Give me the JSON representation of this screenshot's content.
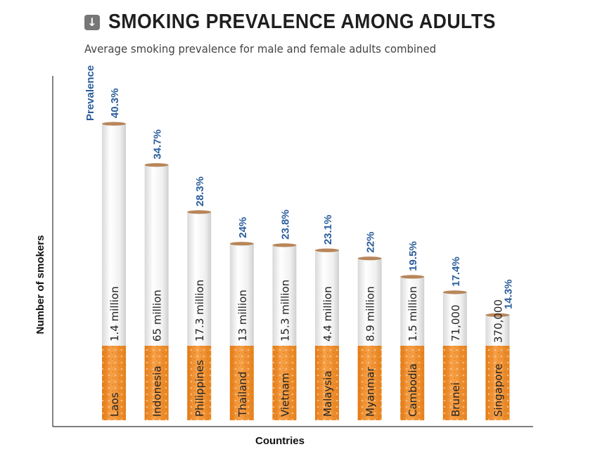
{
  "title": "SMOKING PREVALENCE AMONG ADULTS",
  "title_icon": "down-arrow-icon",
  "subtitle": "Average smoking prevalence for male and female adults combined",
  "colors": {
    "filter": "#f08a24",
    "paper": "#f2f2f2",
    "tip": "#b8865a",
    "prevalence_text": "#2a5d9c",
    "axis": "#333333"
  },
  "chart_data": {
    "type": "bar",
    "title": "SMOKING PREVALENCE AMONG ADULTS",
    "subtitle": "Average smoking prevalence for male and female adults combined",
    "xlabel": "Countries",
    "ylabel": "Number of smokers",
    "prevalence_label": "Prevalence",
    "categories": [
      "Laos",
      "Indonesia",
      "Philippines",
      "Thailand",
      "Vietnam",
      "Malaysia",
      "Myanmar",
      "Cambodia",
      "Brunei",
      "Singapore"
    ],
    "prevalence_values": [
      40.3,
      34.7,
      28.3,
      24,
      23.8,
      23.1,
      22,
      19.5,
      17.4,
      14.3
    ],
    "prevalence_labels": [
      "40.3%",
      "34.7%",
      "28.3%",
      "24%",
      "23.8%",
      "23.1%",
      "22%",
      "19.5%",
      "17.4%",
      "14.3%"
    ],
    "smoker_labels": [
      "1.4 million",
      "65 million",
      "17.3 million",
      "13 million",
      "15.3 million",
      "4.4 million",
      "8.9 million",
      "1.5 million",
      "71,000",
      "370,000"
    ],
    "ylim": [
      0,
      45
    ],
    "grid": false,
    "legend": "none"
  }
}
